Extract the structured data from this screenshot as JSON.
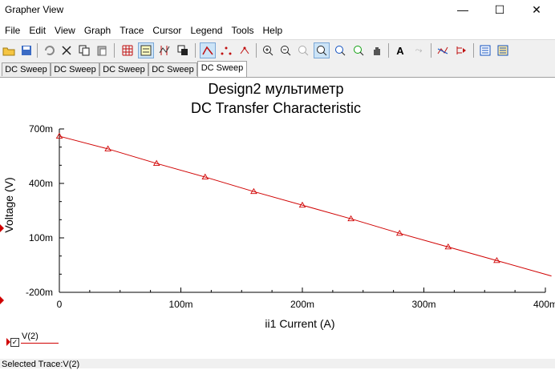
{
  "window": {
    "title": "Grapher View",
    "minimize": "—",
    "maximize": "☐",
    "close": "✕"
  },
  "menu": [
    "File",
    "Edit",
    "View",
    "Graph",
    "Trace",
    "Cursor",
    "Legend",
    "Tools",
    "Help"
  ],
  "toolbar_icons": [
    "open-icon",
    "save-icon",
    "undo-icon",
    "cut-icon",
    "copy-icon",
    "paste-icon",
    "grid-icon",
    "legend-icon",
    "cursor-icon",
    "overlay-icon",
    "line-trace-icon",
    "marker-trace-icon",
    "line-marker-trace-icon",
    "zoom-in-icon",
    "zoom-out-icon",
    "zoom-fit-icon",
    "zoom-area-icon",
    "zoom-x-icon",
    "zoom-y-icon",
    "pan-icon",
    "text-icon",
    "label-icon",
    "trace-style-icon",
    "next-trace-icon",
    "export-icon",
    "export-all-icon"
  ],
  "tabs": [
    "DC Sweep",
    "DC Sweep",
    "DC Sweep",
    "DC Sweep",
    "DC Sweep"
  ],
  "active_tab": 4,
  "legend": {
    "label": "V(2)",
    "checked": true
  },
  "status": "Selected Trace:V(2)",
  "colors": {
    "trace": "#d00000",
    "marker": "#d00000",
    "axis": "#000000"
  },
  "chart_data": {
    "type": "line",
    "title": "Design2 мультиметр",
    "subtitle": "DC Transfer Characteristic",
    "xlabel": "ii1 Current (A)",
    "ylabel": "Voltage (V)",
    "xlim": [
      0,
      0.4
    ],
    "ylim": [
      -0.2,
      0.7
    ],
    "x_ticks": [
      0,
      0.1,
      0.2,
      0.3,
      0.4
    ],
    "x_tick_labels": [
      "0",
      "100m",
      "200m",
      "300m",
      "400m"
    ],
    "y_ticks": [
      -0.2,
      0.1,
      0.4,
      0.7
    ],
    "y_tick_labels": [
      "-200m",
      "100m",
      "400m",
      "700m"
    ],
    "grid": false,
    "series": [
      {
        "name": "V(2)",
        "marker": "triangle",
        "x": [
          0,
          0.04,
          0.08,
          0.12,
          0.16,
          0.2,
          0.24,
          0.28,
          0.32,
          0.36
        ],
        "y": [
          0.66,
          0.59,
          0.51,
          0.435,
          0.355,
          0.28,
          0.205,
          0.125,
          0.05,
          -0.025
        ],
        "line_end": [
          0.405,
          -0.11
        ]
      }
    ]
  }
}
